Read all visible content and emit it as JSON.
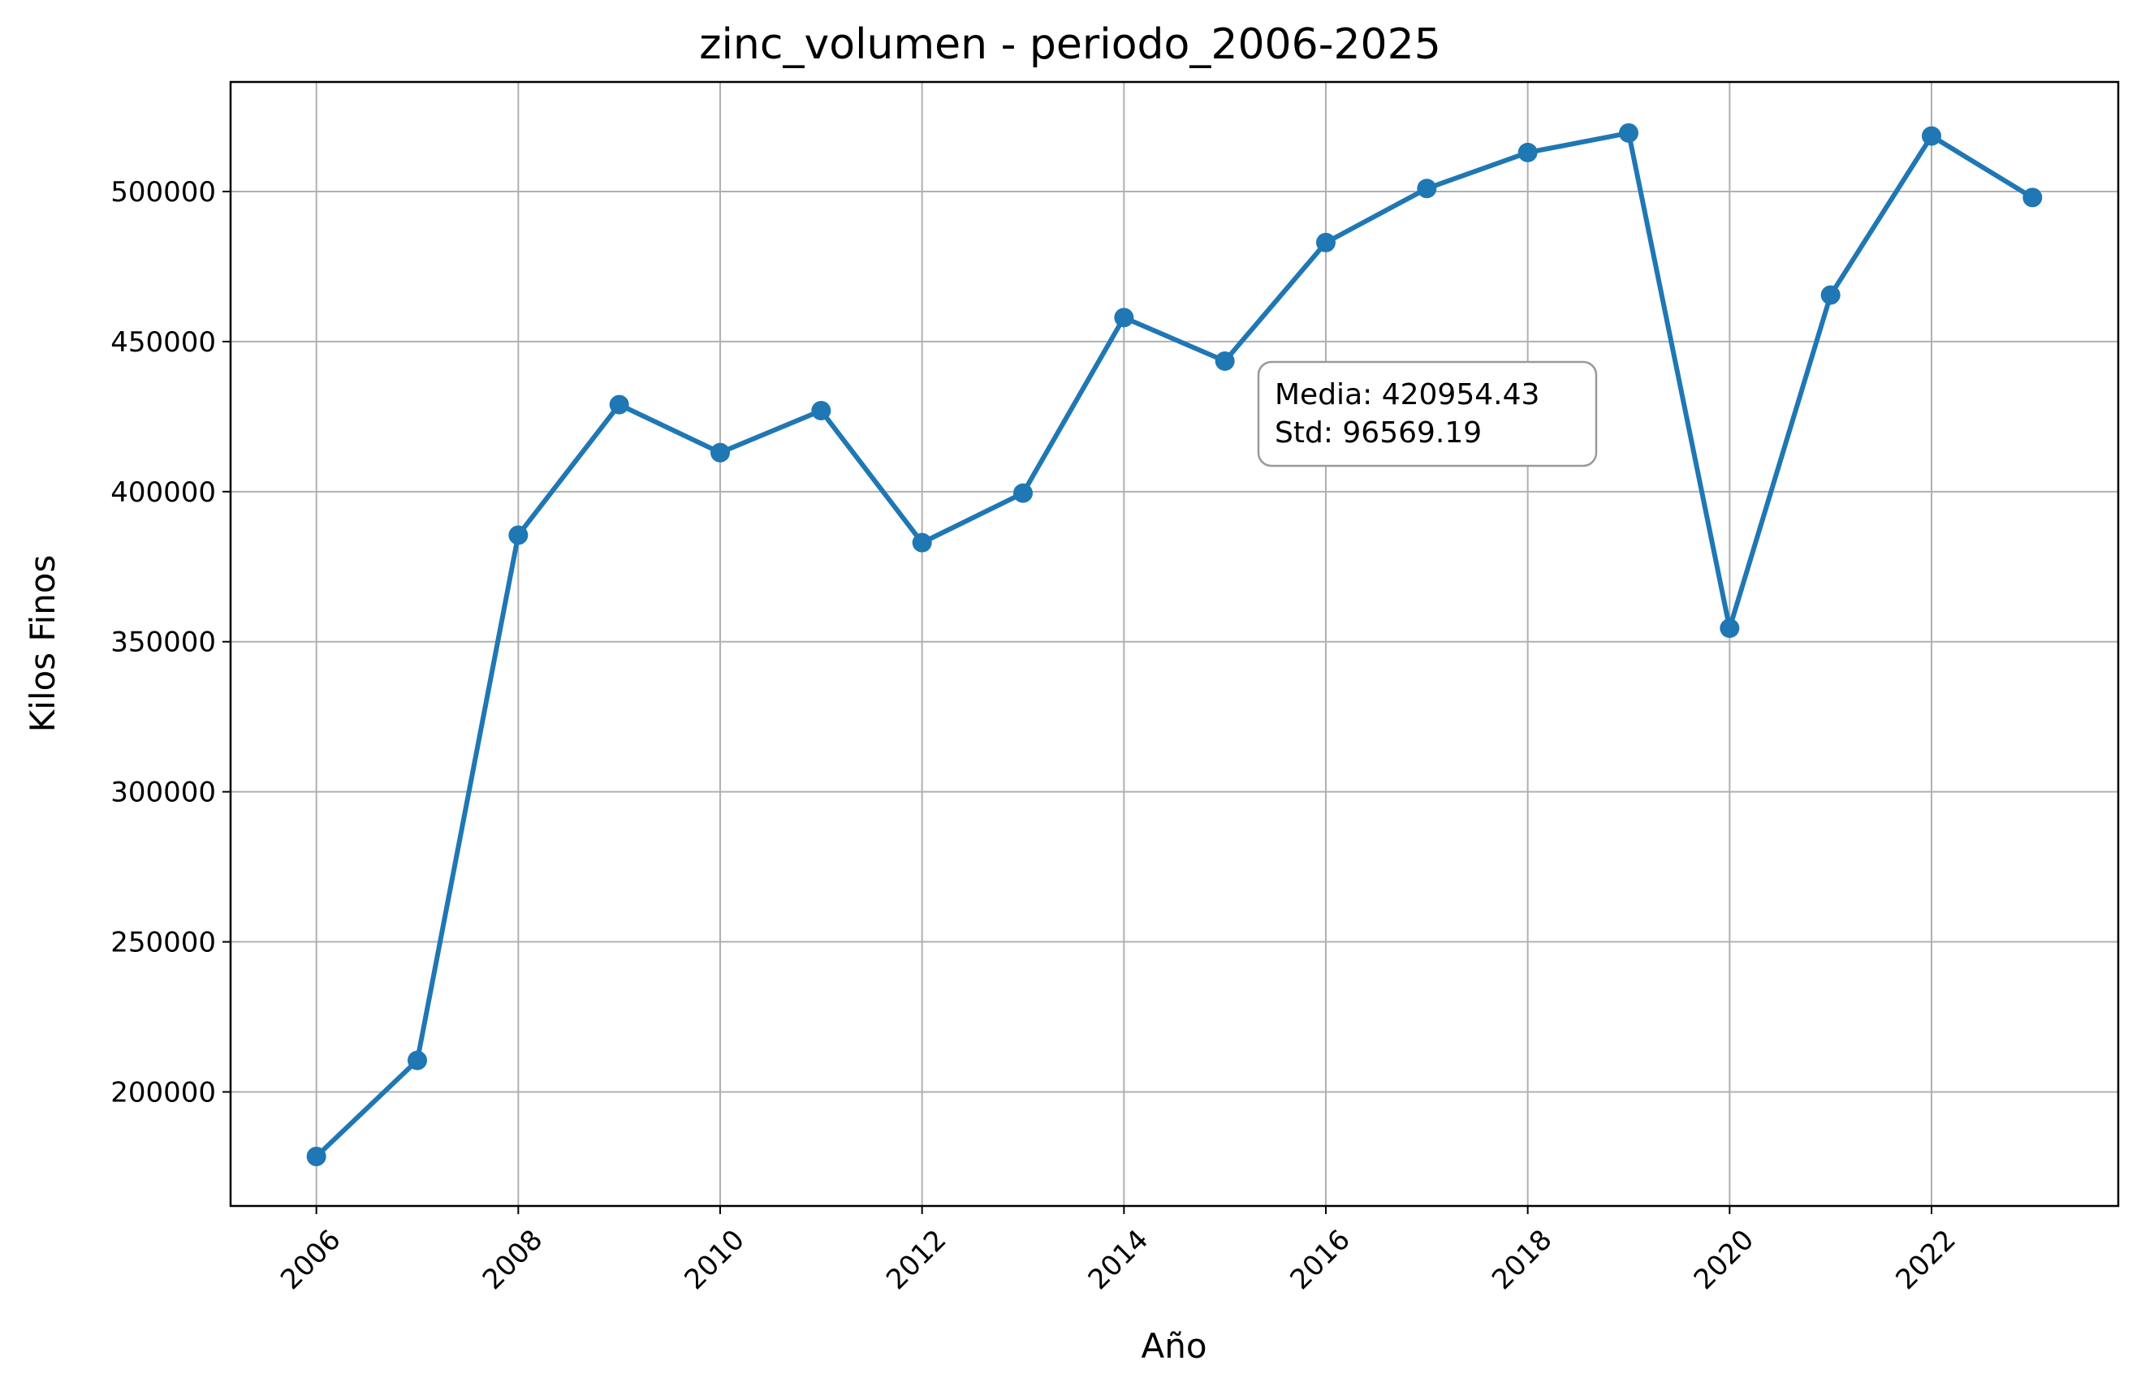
{
  "chart_data": {
    "type": "line",
    "title": "zinc_volumen - periodo_2006-2025",
    "xlabel": "Año",
    "ylabel": "Kilos Finos",
    "x": [
      2006,
      2007,
      2008,
      2009,
      2010,
      2011,
      2012,
      2013,
      2014,
      2015,
      2016,
      2017,
      2018,
      2019,
      2020,
      2021,
      2022,
      2023
    ],
    "series": [
      {
        "values": [
          178500,
          210500,
          385500,
          429000,
          413000,
          427000,
          383000,
          399500,
          458000,
          443500,
          483000,
          501000,
          513000,
          519500,
          354500,
          465500,
          518500,
          498000
        ]
      }
    ],
    "xlim": [
      2005.15,
      2023.85
    ],
    "ylim": [
      162000,
      536500
    ],
    "xticks": [
      "2006",
      "2008",
      "2010",
      "2012",
      "2014",
      "2016",
      "2018",
      "2020",
      "2022"
    ],
    "yticks": [
      "200000",
      "250000",
      "300000",
      "350000",
      "400000",
      "450000",
      "500000"
    ],
    "grid": true,
    "color": "#1f77b4",
    "annotation": {
      "line1": "Media: 420954.43",
      "line2": "Std: 96569.19"
    }
  }
}
